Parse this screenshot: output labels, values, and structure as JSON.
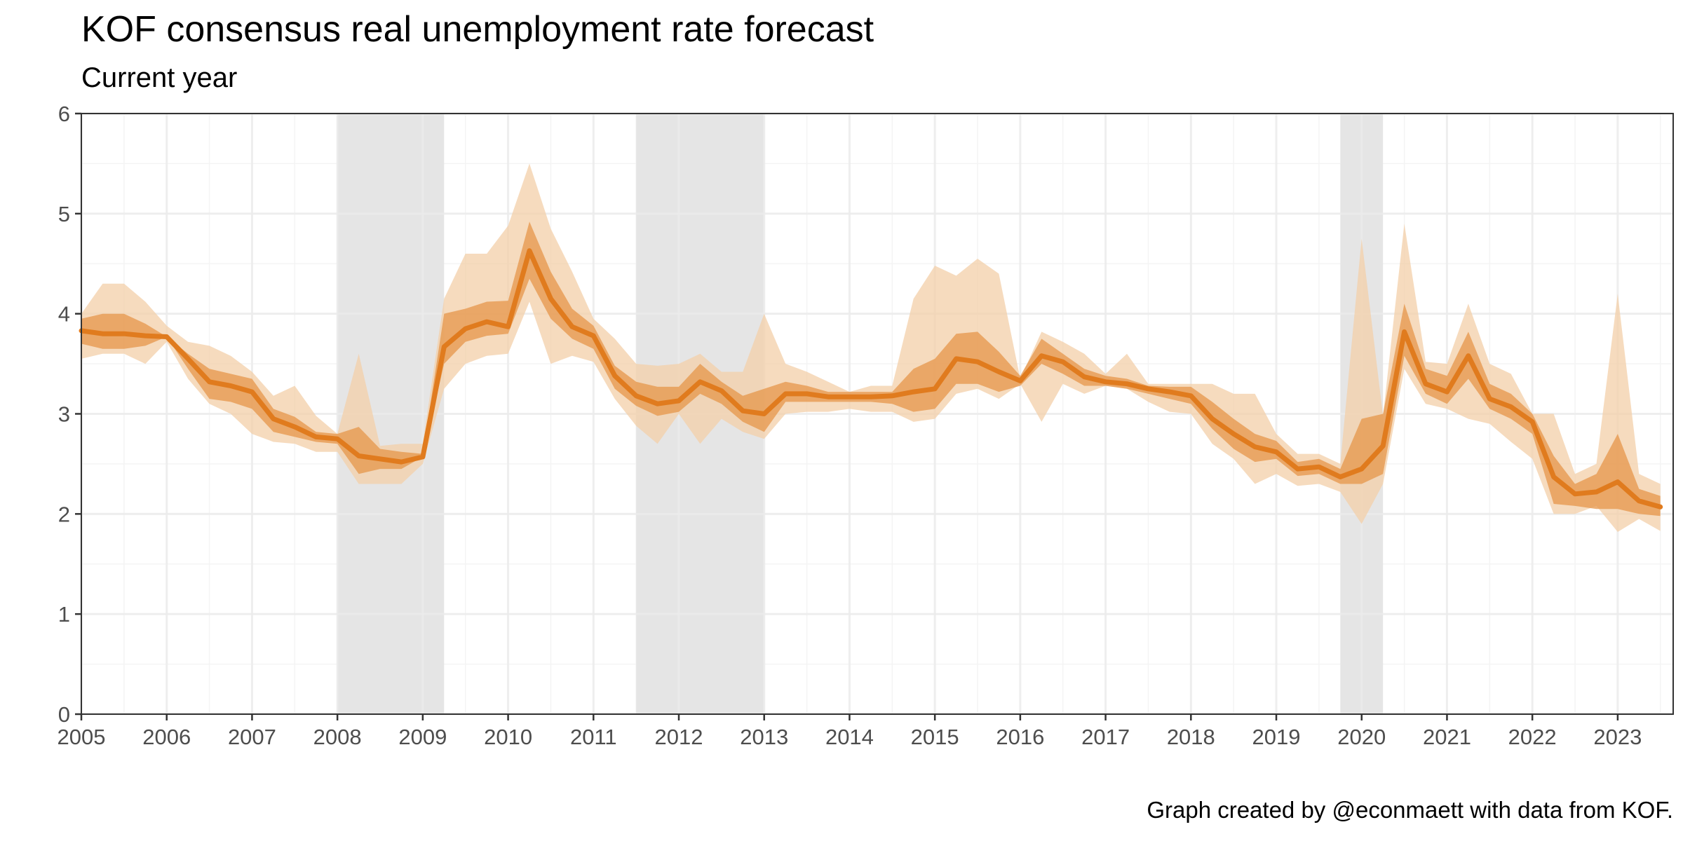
{
  "title": "KOF consensus real unemployment rate forecast",
  "subtitle": "Current year",
  "caption": "Graph created by @econmaett with data from KOF.",
  "colors": {
    "line": "#e07b1e",
    "inner_band": "#e6964a",
    "outer_band": "#f3cfa8",
    "shade": "#e5e5e5",
    "grid_major": "#ebebeb",
    "grid_minor": "#f4f4f4",
    "axis": "#333333"
  },
  "chart_data": {
    "type": "area",
    "title": "KOF consensus real unemployment rate forecast",
    "subtitle": "Current year",
    "xlabel": "",
    "ylabel": "",
    "xlim": [
      2005.0,
      2023.65
    ],
    "ylim": [
      0,
      6
    ],
    "x_ticks": [
      "2005",
      "2006",
      "2007",
      "2008",
      "2009",
      "2010",
      "2011",
      "2012",
      "2013",
      "2014",
      "2015",
      "2016",
      "2017",
      "2018",
      "2019",
      "2020",
      "2021",
      "2022",
      "2023"
    ],
    "y_ticks": [
      "0",
      "1",
      "2",
      "3",
      "4",
      "5",
      "6"
    ],
    "grid": true,
    "legend": "none",
    "shaded_periods": [
      [
        2008.0,
        2009.25
      ],
      [
        2011.5,
        2013.0
      ],
      [
        2019.75,
        2020.25
      ]
    ],
    "x": [
      2005.0,
      2005.25,
      2005.5,
      2005.75,
      2006.0,
      2006.25,
      2006.5,
      2006.75,
      2007.0,
      2007.25,
      2007.5,
      2007.75,
      2008.0,
      2008.25,
      2008.5,
      2008.75,
      2009.0,
      2009.25,
      2009.5,
      2009.75,
      2010.0,
      2010.25,
      2010.5,
      2010.75,
      2011.0,
      2011.25,
      2011.5,
      2011.75,
      2012.0,
      2012.25,
      2012.5,
      2012.75,
      2013.0,
      2013.25,
      2013.5,
      2013.75,
      2014.0,
      2014.25,
      2014.5,
      2014.75,
      2015.0,
      2015.25,
      2015.5,
      2015.75,
      2016.0,
      2016.25,
      2016.5,
      2016.75,
      2017.0,
      2017.25,
      2017.5,
      2017.75,
      2018.0,
      2018.25,
      2018.5,
      2018.75,
      2019.0,
      2019.25,
      2019.5,
      2019.75,
      2020.0,
      2020.25,
      2020.5,
      2020.75,
      2021.0,
      2021.25,
      2021.5,
      2021.75,
      2022.0,
      2022.25,
      2022.5,
      2022.75,
      2023.0,
      2023.25,
      2023.5
    ],
    "series": [
      {
        "name": "median",
        "values": [
          3.83,
          3.8,
          3.8,
          3.78,
          3.77,
          3.55,
          3.32,
          3.28,
          3.22,
          2.95,
          2.87,
          2.77,
          2.75,
          2.58,
          2.55,
          2.52,
          2.57,
          3.67,
          3.85,
          3.92,
          3.87,
          4.63,
          4.15,
          3.87,
          3.78,
          3.38,
          3.18,
          3.1,
          3.13,
          3.32,
          3.23,
          3.03,
          3.0,
          3.2,
          3.2,
          3.17,
          3.17,
          3.17,
          3.18,
          3.22,
          3.25,
          3.55,
          3.52,
          3.42,
          3.33,
          3.58,
          3.52,
          3.37,
          3.32,
          3.3,
          3.25,
          3.22,
          3.18,
          2.95,
          2.8,
          2.67,
          2.62,
          2.45,
          2.47,
          2.37,
          2.45,
          2.68,
          3.82,
          3.3,
          3.22,
          3.58,
          3.15,
          3.07,
          2.92,
          2.37,
          2.2,
          2.22,
          2.32,
          2.13,
          2.07
        ]
      },
      {
        "name": "inner_low",
        "values": [
          3.7,
          3.65,
          3.65,
          3.68,
          3.77,
          3.45,
          3.15,
          3.12,
          3.05,
          2.82,
          2.77,
          2.72,
          2.7,
          2.4,
          2.45,
          2.45,
          2.57,
          3.5,
          3.72,
          3.78,
          3.8,
          4.35,
          3.95,
          3.75,
          3.65,
          3.25,
          3.08,
          2.98,
          3.02,
          3.2,
          3.1,
          2.92,
          2.82,
          3.12,
          3.12,
          3.12,
          3.12,
          3.12,
          3.1,
          3.02,
          3.05,
          3.3,
          3.3,
          3.22,
          3.28,
          3.5,
          3.4,
          3.28,
          3.28,
          3.25,
          3.2,
          3.15,
          3.1,
          2.85,
          2.65,
          2.52,
          2.55,
          2.38,
          2.4,
          2.3,
          2.3,
          2.4,
          3.58,
          3.2,
          3.1,
          3.35,
          3.05,
          2.95,
          2.8,
          2.1,
          2.08,
          2.05,
          2.05,
          2.0,
          1.98
        ]
      },
      {
        "name": "inner_high",
        "values": [
          3.95,
          4.0,
          4.0,
          3.9,
          3.77,
          3.6,
          3.45,
          3.4,
          3.35,
          3.05,
          2.97,
          2.82,
          2.8,
          2.87,
          2.65,
          2.62,
          2.6,
          4.0,
          4.05,
          4.12,
          4.13,
          4.92,
          4.42,
          4.05,
          3.88,
          3.48,
          3.32,
          3.27,
          3.27,
          3.5,
          3.32,
          3.18,
          3.25,
          3.32,
          3.28,
          3.22,
          3.22,
          3.22,
          3.22,
          3.45,
          3.55,
          3.8,
          3.82,
          3.62,
          3.38,
          3.75,
          3.6,
          3.45,
          3.38,
          3.35,
          3.28,
          3.27,
          3.27,
          3.12,
          2.95,
          2.8,
          2.73,
          2.52,
          2.55,
          2.45,
          2.95,
          3.0,
          4.1,
          3.45,
          3.38,
          3.82,
          3.3,
          3.2,
          3.0,
          2.58,
          2.3,
          2.4,
          2.8,
          2.25,
          2.18
        ]
      },
      {
        "name": "outer_low",
        "values": [
          3.55,
          3.6,
          3.6,
          3.5,
          3.72,
          3.35,
          3.1,
          3.0,
          2.8,
          2.72,
          2.7,
          2.62,
          2.62,
          2.3,
          2.3,
          2.3,
          2.5,
          3.25,
          3.5,
          3.58,
          3.6,
          4.12,
          3.5,
          3.58,
          3.52,
          3.15,
          2.88,
          2.7,
          3.0,
          2.7,
          2.95,
          2.82,
          2.75,
          3.0,
          3.02,
          3.02,
          3.05,
          3.02,
          3.02,
          2.92,
          2.95,
          3.2,
          3.25,
          3.15,
          3.3,
          2.92,
          3.3,
          3.2,
          3.28,
          3.25,
          3.12,
          3.02,
          3.0,
          2.7,
          2.55,
          2.3,
          2.4,
          2.28,
          2.3,
          2.22,
          1.9,
          2.3,
          3.45,
          3.1,
          3.05,
          2.95,
          2.9,
          2.72,
          2.55,
          2.0,
          2.0,
          2.08,
          1.82,
          1.95,
          1.83
        ]
      },
      {
        "name": "outer_high",
        "values": [
          4.0,
          4.3,
          4.3,
          4.12,
          3.88,
          3.72,
          3.68,
          3.58,
          3.42,
          3.18,
          3.28,
          2.98,
          2.8,
          3.6,
          2.68,
          2.7,
          2.7,
          4.15,
          4.6,
          4.6,
          4.88,
          5.5,
          4.85,
          4.42,
          3.95,
          3.75,
          3.5,
          3.48,
          3.5,
          3.6,
          3.42,
          3.42,
          4.0,
          3.5,
          3.42,
          3.32,
          3.22,
          3.28,
          3.28,
          4.15,
          4.48,
          4.38,
          4.55,
          4.4,
          3.35,
          3.82,
          3.72,
          3.6,
          3.4,
          3.6,
          3.3,
          3.3,
          3.3,
          3.3,
          3.2,
          3.2,
          2.8,
          2.6,
          2.6,
          2.5,
          4.75,
          2.98,
          4.9,
          3.52,
          3.5,
          4.1,
          3.5,
          3.4,
          3.0,
          3.0,
          2.4,
          2.5,
          4.2,
          2.4,
          2.3
        ]
      }
    ]
  }
}
